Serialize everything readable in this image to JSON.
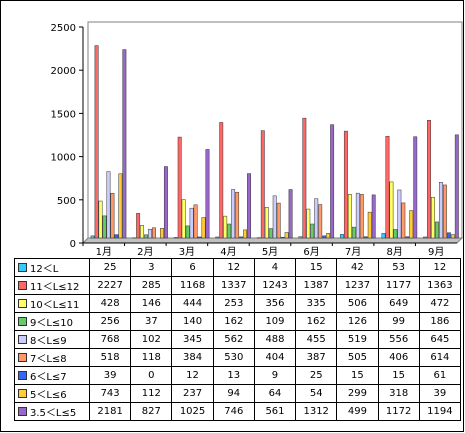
{
  "chart_data": {
    "type": "bar",
    "categories": [
      "1月",
      "2月",
      "3月",
      "4月",
      "5月",
      "6月",
      "7月",
      "8月",
      "9月"
    ],
    "ylim": [
      0,
      2500
    ],
    "yticks": [
      "0",
      "500",
      "1000",
      "1500",
      "2000",
      "2500"
    ],
    "grid": false,
    "legend": "table-below",
    "series": [
      {
        "name": "12＜L",
        "color": "#33ccff",
        "values": [
          25,
          3,
          6,
          12,
          4,
          15,
          42,
          53,
          12
        ]
      },
      {
        "name": "11＜L≤12",
        "color": "#ff6666",
        "values": [
          2227,
          285,
          1168,
          1337,
          1243,
          1387,
          1237,
          1177,
          1363
        ]
      },
      {
        "name": "10＜L≤11",
        "color": "#ffff66",
        "values": [
          428,
          146,
          444,
          253,
          356,
          335,
          506,
          649,
          472
        ]
      },
      {
        "name": "9＜L≤10",
        "color": "#66cc66",
        "values": [
          256,
          37,
          140,
          162,
          109,
          162,
          126,
          99,
          186
        ]
      },
      {
        "name": "8＜L≤9",
        "color": "#ccccff",
        "values": [
          768,
          102,
          345,
          562,
          488,
          455,
          519,
          556,
          645
        ]
      },
      {
        "name": "7＜L≤8",
        "color": "#ff9966",
        "values": [
          518,
          118,
          384,
          530,
          404,
          387,
          505,
          406,
          614
        ]
      },
      {
        "name": "6＜L≤7",
        "color": "#3366ff",
        "values": [
          39,
          0,
          12,
          13,
          9,
          25,
          15,
          15,
          61
        ]
      },
      {
        "name": "5＜L≤6",
        "color": "#ffcc33",
        "values": [
          743,
          112,
          237,
          94,
          64,
          54,
          299,
          318,
          39
        ]
      },
      {
        "name": "3.5＜L≤5",
        "color": "#9966cc",
        "values": [
          2181,
          827,
          1025,
          746,
          561,
          1312,
          499,
          1172,
          1194
        ]
      }
    ]
  }
}
